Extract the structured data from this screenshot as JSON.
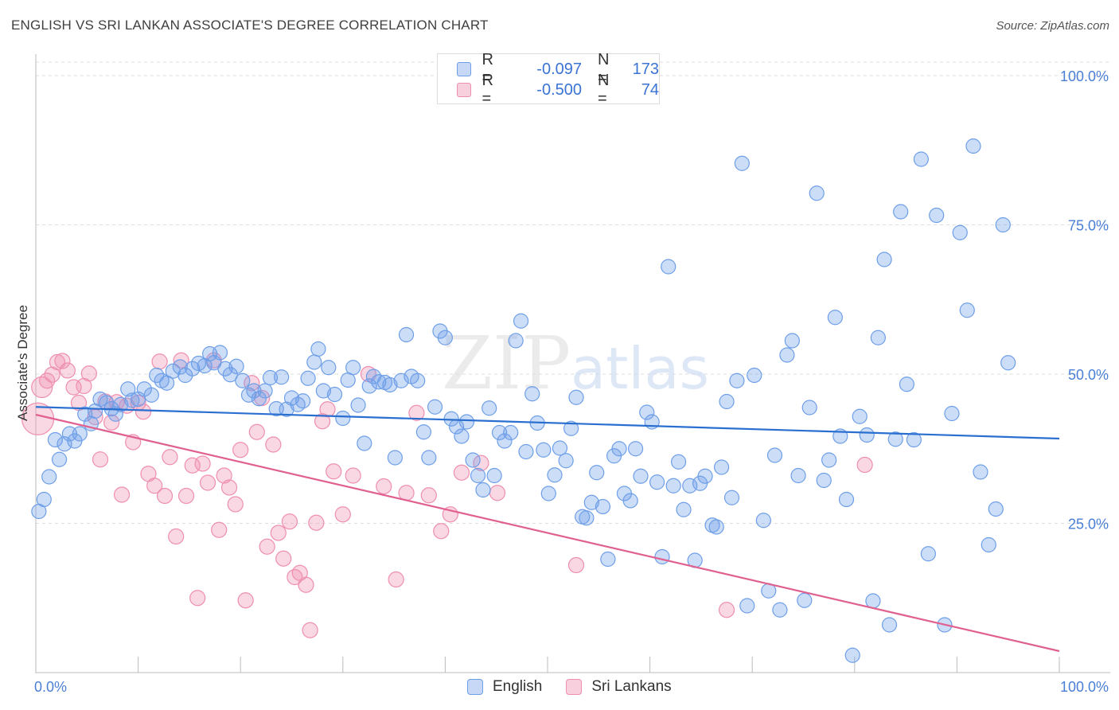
{
  "title": "ENGLISH VS SRI LANKAN ASSOCIATE'S DEGREE CORRELATION CHART",
  "source": "Source: ZipAtlas.com",
  "legend": {
    "rows": [
      {
        "r_label": "R =",
        "r_value": "-0.097",
        "n_label": "N =",
        "n_value": "173",
        "color": "#6d9ee8"
      },
      {
        "r_label": "R =",
        "r_value": "-0.500",
        "n_label": "N =",
        "n_value": "74",
        "color": "#ef8fb0"
      }
    ]
  },
  "bottom_legend": {
    "english": "English",
    "sri_lankans": "Sri Lankans"
  },
  "watermark": {
    "zip": "ZIP",
    "atlas": "atlas"
  },
  "chart_data": {
    "type": "scatter",
    "title": "ENGLISH VS SRI LANKAN ASSOCIATE'S DEGREE CORRELATION CHART",
    "xlabel": "",
    "ylabel": "Associate's Degree",
    "xlim": [
      0,
      100
    ],
    "ylim": [
      0,
      100
    ],
    "x_tick_labels": [
      "0.0%",
      "100.0%"
    ],
    "y_tick_labels": [
      "100.0%",
      "75.0%",
      "50.0%",
      "25.0%"
    ],
    "y_tick_values": [
      100,
      75,
      50,
      25
    ],
    "colors": {
      "english": "#6d9ee8",
      "english_line": "#2a6fd0",
      "sri": "#ef8fb0",
      "sri_line": "#e0608f",
      "grid": "#dddddd",
      "tick": "#4a7fd6"
    },
    "series": [
      {
        "name": "English",
        "r": -0.097,
        "n": 173,
        "trend": [
          [
            0,
            44.5
          ],
          [
            100,
            39.2
          ]
        ],
        "points": [
          [
            0.3,
            27
          ],
          [
            0.8,
            29
          ],
          [
            1.3,
            32.8
          ],
          [
            1.9,
            39
          ],
          [
            2.3,
            35.7
          ],
          [
            2.8,
            38.3
          ],
          [
            3.3,
            40
          ],
          [
            3.8,
            38.8
          ],
          [
            4.3,
            40
          ],
          [
            4.8,
            43.3
          ],
          [
            5.4,
            41.7
          ],
          [
            5.8,
            43.8
          ],
          [
            6.3,
            45.8
          ],
          [
            6.9,
            45.2
          ],
          [
            7.4,
            44.2
          ],
          [
            7.8,
            43.3
          ],
          [
            8.3,
            44.9
          ],
          [
            9,
            47.5
          ],
          [
            9.4,
            45.6
          ],
          [
            10,
            45.8
          ],
          [
            10.6,
            47.5
          ],
          [
            11.3,
            46.5
          ],
          [
            11.8,
            49.8
          ],
          [
            12.3,
            48.9
          ],
          [
            12.8,
            48.5
          ],
          [
            13.4,
            50.5
          ],
          [
            14.1,
            51.2
          ],
          [
            14.6,
            49.8
          ],
          [
            15.3,
            50.9
          ],
          [
            15.9,
            51.8
          ],
          [
            16.5,
            51.4
          ],
          [
            17,
            53.4
          ],
          [
            17.4,
            51.9
          ],
          [
            18,
            53.6
          ],
          [
            18.5,
            50.9
          ],
          [
            19,
            49.9
          ],
          [
            19.6,
            51.3
          ],
          [
            20.2,
            48.9
          ],
          [
            20.8,
            46.5
          ],
          [
            21.3,
            47.2
          ],
          [
            21.8,
            45.9
          ],
          [
            22.4,
            47.2
          ],
          [
            22.9,
            49.4
          ],
          [
            23.5,
            44.2
          ],
          [
            24,
            49.5
          ],
          [
            24.5,
            44.1
          ],
          [
            25,
            46
          ],
          [
            25.6,
            44.9
          ],
          [
            26.1,
            45.5
          ],
          [
            26.6,
            49.3
          ],
          [
            27.2,
            52
          ],
          [
            27.6,
            54.2
          ],
          [
            28.1,
            47.2
          ],
          [
            28.6,
            51.1
          ],
          [
            29.2,
            46.6
          ],
          [
            30,
            42.6
          ],
          [
            30.5,
            49
          ],
          [
            31,
            51.1
          ],
          [
            31.5,
            44.8
          ],
          [
            32.1,
            38.4
          ],
          [
            32.6,
            48
          ],
          [
            33,
            49.6
          ],
          [
            33.5,
            48.7
          ],
          [
            34.1,
            48.6
          ],
          [
            34.6,
            48.2
          ],
          [
            35.1,
            36
          ],
          [
            35.7,
            48.9
          ],
          [
            36.2,
            56.6
          ],
          [
            36.7,
            49.6
          ],
          [
            37.3,
            48.9
          ],
          [
            37.9,
            40.3
          ],
          [
            38.4,
            36
          ],
          [
            39,
            44.5
          ],
          [
            39.5,
            57.2
          ],
          [
            40,
            56.1
          ],
          [
            40.6,
            42.5
          ],
          [
            41.1,
            41.2
          ],
          [
            41.6,
            39.6
          ],
          [
            42.1,
            42
          ],
          [
            42.7,
            35.6
          ],
          [
            43.2,
            33
          ],
          [
            43.7,
            30.6
          ],
          [
            44.3,
            44.3
          ],
          [
            44.8,
            33
          ],
          [
            45.3,
            40.2
          ],
          [
            45.8,
            38.8
          ],
          [
            46.4,
            40.2
          ],
          [
            46.9,
            55.6
          ],
          [
            47.4,
            58.9
          ],
          [
            47.9,
            37
          ],
          [
            48.5,
            46.7
          ],
          [
            49,
            41.8
          ],
          [
            49.6,
            37.3
          ],
          [
            50.1,
            30
          ],
          [
            50.7,
            33.1
          ],
          [
            51.2,
            37.6
          ],
          [
            51.8,
            35.5
          ],
          [
            52.3,
            40.9
          ],
          [
            52.8,
            46.1
          ],
          [
            53.4,
            26.1
          ],
          [
            53.8,
            25.9
          ],
          [
            54.3,
            28.5
          ],
          [
            54.8,
            33.5
          ],
          [
            55.4,
            27.8
          ],
          [
            55.9,
            19
          ],
          [
            56.5,
            36.3
          ],
          [
            57,
            37.5
          ],
          [
            57.5,
            30
          ],
          [
            58.1,
            28.8
          ],
          [
            58.6,
            37.5
          ],
          [
            59.1,
            32.9
          ],
          [
            59.7,
            43.6
          ],
          [
            60.2,
            42
          ],
          [
            60.7,
            31.9
          ],
          [
            61.2,
            19.4
          ],
          [
            61.8,
            68
          ],
          [
            62.3,
            31.3
          ],
          [
            62.8,
            35.3
          ],
          [
            63.3,
            27.3
          ],
          [
            63.9,
            31.3
          ],
          [
            64.4,
            18.8
          ],
          [
            64.9,
            31.7
          ],
          [
            65.4,
            32.9
          ],
          [
            66.1,
            24.7
          ],
          [
            66.5,
            24.4
          ],
          [
            67,
            34.4
          ],
          [
            67.5,
            45.4
          ],
          [
            68,
            29.3
          ],
          [
            68.5,
            48.9
          ],
          [
            69,
            85.3
          ],
          [
            69.5,
            11.2
          ],
          [
            70.2,
            49.8
          ],
          [
            71.1,
            25.5
          ],
          [
            71.6,
            13.7
          ],
          [
            72.2,
            36.4
          ],
          [
            72.7,
            10.5
          ],
          [
            73.4,
            53.2
          ],
          [
            73.9,
            55.6
          ],
          [
            74.5,
            33
          ],
          [
            75.1,
            12.1
          ],
          [
            75.6,
            44.4
          ],
          [
            76.3,
            80.3
          ],
          [
            77,
            32.2
          ],
          [
            77.5,
            35.6
          ],
          [
            78.1,
            59.5
          ],
          [
            78.6,
            39.6
          ],
          [
            79.2,
            29
          ],
          [
            79.8,
            2.9
          ],
          [
            80.5,
            42.9
          ],
          [
            81.2,
            39.8
          ],
          [
            81.8,
            12
          ],
          [
            82.3,
            56.1
          ],
          [
            82.9,
            69.2
          ],
          [
            83.4,
            8
          ],
          [
            84,
            39.1
          ],
          [
            84.5,
            77.2
          ],
          [
            85.1,
            48.3
          ],
          [
            85.8,
            39
          ],
          [
            86.5,
            86
          ],
          [
            87.2,
            19.9
          ],
          [
            88,
            76.6
          ],
          [
            88.8,
            8
          ],
          [
            89.5,
            43.4
          ],
          [
            90.3,
            73.7
          ],
          [
            91,
            60.7
          ],
          [
            91.6,
            88.2
          ],
          [
            92.3,
            33.6
          ],
          [
            93.1,
            21.4
          ],
          [
            93.8,
            27.4
          ],
          [
            94.5,
            75
          ],
          [
            95,
            51.9
          ]
        ]
      },
      {
        "name": "Sri Lankans",
        "r": -0.5,
        "n": 74,
        "trend": [
          [
            0,
            43.2
          ],
          [
            100,
            3.6
          ]
        ],
        "points": [
          [
            0.2,
            42.5
          ],
          [
            0.6,
            47.8
          ],
          [
            1.1,
            48.9
          ],
          [
            1.6,
            49.9
          ],
          [
            2.1,
            52
          ],
          [
            2.6,
            52.2
          ],
          [
            3.1,
            50.6
          ],
          [
            3.7,
            47.8
          ],
          [
            4.2,
            45.2
          ],
          [
            4.7,
            48
          ],
          [
            5.2,
            50.1
          ],
          [
            5.8,
            42.8
          ],
          [
            6.3,
            35.7
          ],
          [
            6.8,
            45.4
          ],
          [
            7.4,
            41.9
          ],
          [
            7.9,
            45.3
          ],
          [
            8.4,
            29.8
          ],
          [
            8.9,
            44.7
          ],
          [
            9.5,
            38.6
          ],
          [
            10,
            45.2
          ],
          [
            10.5,
            43.7
          ],
          [
            11,
            33.3
          ],
          [
            11.6,
            31.3
          ],
          [
            12.1,
            52.1
          ],
          [
            12.6,
            29.6
          ],
          [
            13.1,
            36.1
          ],
          [
            13.7,
            22.8
          ],
          [
            14.2,
            52.3
          ],
          [
            14.7,
            29.6
          ],
          [
            15.3,
            34.7
          ],
          [
            15.8,
            12.5
          ],
          [
            16.3,
            35
          ],
          [
            16.8,
            31.8
          ],
          [
            17.4,
            52.3
          ],
          [
            17.9,
            23.9
          ],
          [
            18.4,
            33
          ],
          [
            18.9,
            31
          ],
          [
            19.5,
            28.2
          ],
          [
            20,
            37.3
          ],
          [
            20.5,
            12.1
          ],
          [
            21.1,
            48.5
          ],
          [
            21.6,
            40.3
          ],
          [
            22.1,
            46
          ],
          [
            22.6,
            21.1
          ],
          [
            23.2,
            38.2
          ],
          [
            23.7,
            23.4
          ],
          [
            24.2,
            19.1
          ],
          [
            24.8,
            25.3
          ],
          [
            25.3,
            16
          ],
          [
            25.8,
            16.7
          ],
          [
            26.4,
            14.7
          ],
          [
            26.8,
            7.1
          ],
          [
            27.4,
            25.1
          ],
          [
            28,
            42.1
          ],
          [
            28.5,
            44.1
          ],
          [
            29.1,
            33.7
          ],
          [
            30,
            26.5
          ],
          [
            31,
            33
          ],
          [
            32.5,
            50
          ],
          [
            34,
            31.2
          ],
          [
            35.2,
            15.6
          ],
          [
            36.2,
            30.1
          ],
          [
            37.2,
            43.5
          ],
          [
            38.4,
            29.7
          ],
          [
            39.6,
            23.7
          ],
          [
            40.5,
            26.5
          ],
          [
            41.6,
            33.5
          ],
          [
            43.5,
            35.1
          ],
          [
            45.1,
            30.1
          ],
          [
            52.8,
            18
          ],
          [
            67.5,
            10.5
          ],
          [
            81,
            34.8
          ]
        ]
      }
    ]
  }
}
